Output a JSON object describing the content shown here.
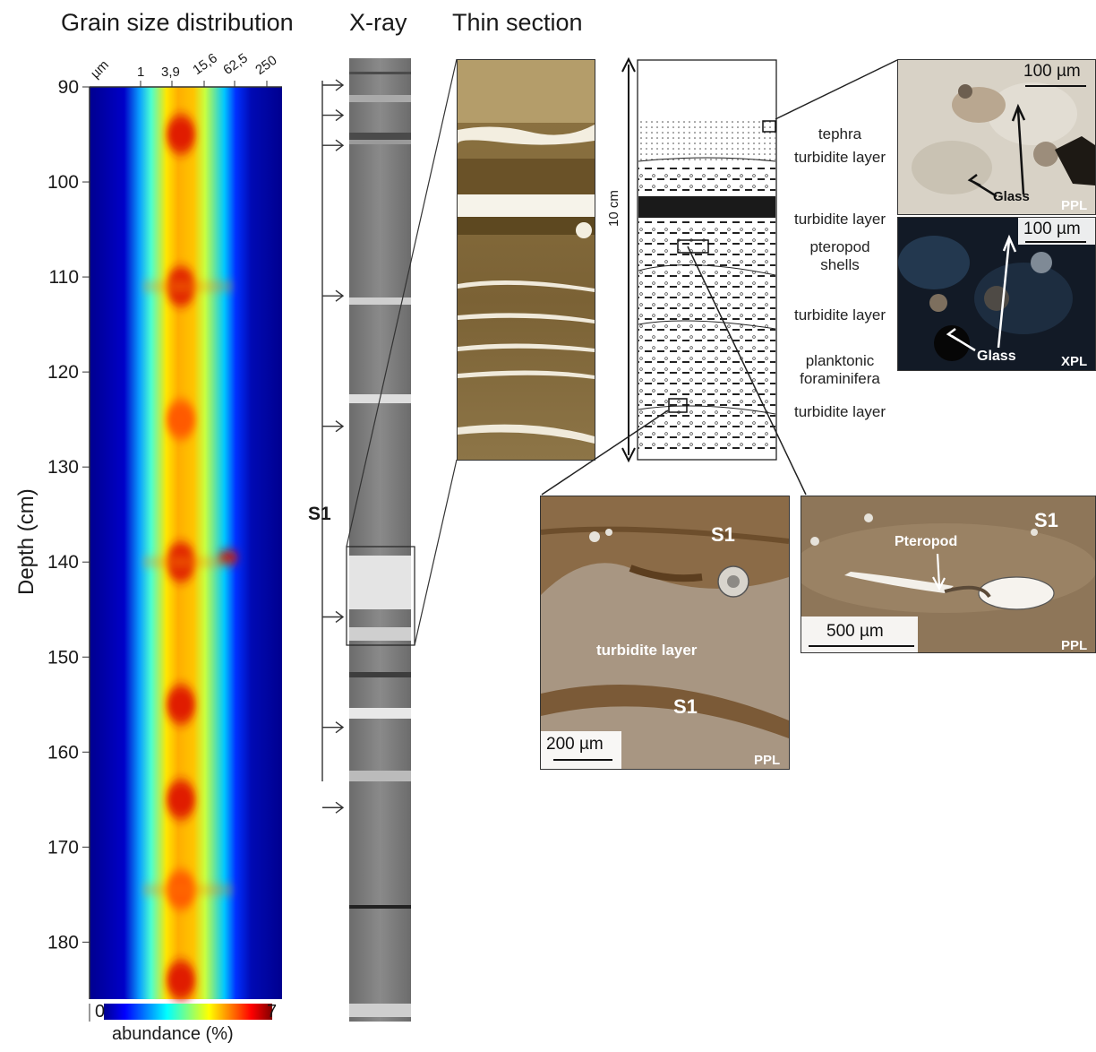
{
  "titles": {
    "grain": "Grain size distribution",
    "xray": "X-ray",
    "thin": "Thin section"
  },
  "chart_data": {
    "type": "heatmap",
    "title": "Grain size distribution",
    "ylabel": "Depth (cm)",
    "xlabel": "µm",
    "x_tick_labels": [
      "1",
      "3,9",
      "15,6",
      "62,5",
      "250"
    ],
    "y_ticks": [
      90,
      100,
      110,
      120,
      130,
      140,
      150,
      160,
      170,
      180
    ],
    "ylim": [
      90,
      186
    ],
    "colorbar": {
      "min": "0",
      "max": "7",
      "label": "abundance (%)"
    },
    "hot_zones_depth_cm": [
      {
        "depth": 95,
        "value": 7
      },
      {
        "depth": 111,
        "value": 7
      },
      {
        "depth": 125,
        "value": 6
      },
      {
        "depth": 140,
        "value": 7
      },
      {
        "depth": 155,
        "value": 7
      },
      {
        "depth": 165,
        "value": 7
      },
      {
        "depth": 174.5,
        "value": 6
      },
      {
        "depth": 184,
        "value": 7
      }
    ]
  },
  "xray": {
    "s1_label": "S1",
    "arrow_depths_cm": [
      90,
      93,
      96,
      111,
      124,
      143,
      154,
      162
    ]
  },
  "column": {
    "scale_label": "10 cm",
    "layers": [
      "tephra",
      "turbidite layer",
      "turbidite layer",
      "pteropod\nshells",
      "turbidite layer",
      "planktonic\nforaminifera",
      "turbidite layer"
    ]
  },
  "micrographs": {
    "top_ppl": {
      "scale": "100 µm",
      "label": "Glass",
      "mode": "PPL"
    },
    "top_xpl": {
      "scale": "100 µm",
      "label": "Glass",
      "mode": "XPL"
    },
    "bottom_left": {
      "scale": "200 µm",
      "s1_top": "S1",
      "s1_bottom": "S1",
      "layer": "turbidite layer",
      "mode": "PPL"
    },
    "bottom_right": {
      "scale": "500 µm",
      "s1": "S1",
      "label": "Pteropod",
      "mode": "PPL"
    }
  },
  "colors": {
    "heatmap_low": "#00008f",
    "heatmap_mid": "#00ffff",
    "heatmap_high": "#ffff00",
    "heatmap_max": "#800000",
    "xray_gray": "#7a7a7a",
    "thin_section": "#7a6235"
  }
}
